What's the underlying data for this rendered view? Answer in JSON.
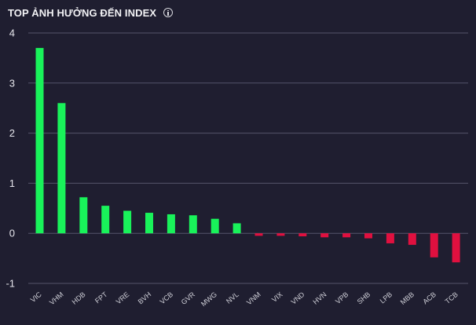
{
  "title": "TOP ẢNH HƯỞNG ĐẾN INDEX",
  "icons": {
    "info": "info-icon"
  },
  "colors": {
    "positive": "#19f25a",
    "negative": "#e0103f",
    "grid": "#55546a",
    "background": "#1f1e30"
  },
  "chart_data": {
    "type": "bar",
    "title": "TOP ẢNH HƯỞNG ĐẾN INDEX",
    "xlabel": "",
    "ylabel": "",
    "ylim": [
      -1,
      4
    ],
    "yticks": [
      4,
      3,
      2,
      1,
      0,
      -1
    ],
    "grid": true,
    "categories": [
      "VIC",
      "VHM",
      "HDB",
      "FPT",
      "VRE",
      "BVH",
      "VCB",
      "GVR",
      "MWG",
      "NVL",
      "VNM",
      "VIX",
      "VND",
      "HVN",
      "VPB",
      "SHB",
      "LPB",
      "MBB",
      "ACB",
      "TCB"
    ],
    "values": [
      3.7,
      2.6,
      0.72,
      0.55,
      0.45,
      0.41,
      0.38,
      0.36,
      0.29,
      0.2,
      -0.05,
      -0.05,
      -0.06,
      -0.08,
      -0.08,
      -0.1,
      -0.2,
      -0.23,
      -0.48,
      -0.58
    ]
  }
}
